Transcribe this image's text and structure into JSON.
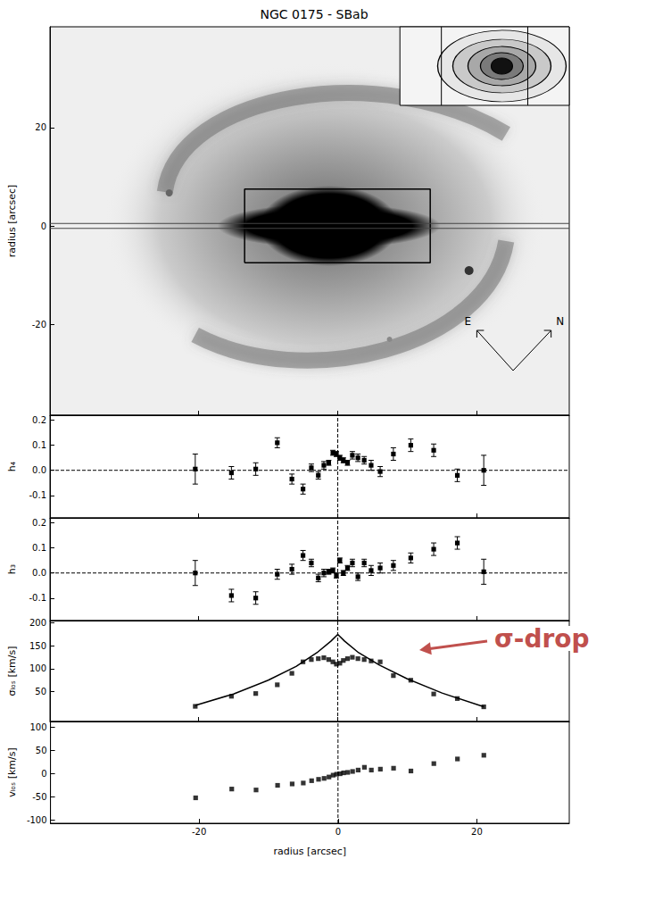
{
  "chart_data": [
    {
      "type": "image",
      "title": "NGC 0175 - SBab",
      "xlim": [
        -41.4,
        33.3
      ],
      "xticks": [
        -20,
        0,
        20
      ],
      "ylim": [
        -38.5,
        40.5
      ],
      "yticks": [
        -20,
        0,
        20
      ],
      "ylabel": "radius [arcsec]",
      "tick_labels": "y",
      "box": {
        "x": [
          -13.4,
          13.3
        ],
        "y": [
          -7.5,
          7.5
        ]
      },
      "slit": {
        "y": [
          -0.5,
          0.5
        ]
      },
      "compass": [
        "E",
        "N"
      ]
    },
    {
      "type": "scatter",
      "ylabel": "h₄",
      "color": "#000000",
      "marker": "square",
      "tick_labels": "y",
      "x": [
        -20.5,
        -15.3,
        -11.8,
        -8.7,
        -6.6,
        -5.0,
        -3.8,
        -2.8,
        -2.0,
        -1.3,
        -0.7,
        -0.2,
        0.3,
        0.8,
        1.4,
        2.1,
        2.9,
        3.8,
        4.8,
        6.1,
        8.0,
        10.5,
        13.8,
        17.2,
        21.0
      ],
      "values": [
        0.005,
        -0.01,
        0.005,
        0.11,
        -0.035,
        -0.075,
        0.01,
        -0.02,
        0.02,
        0.03,
        0.07,
        0.065,
        0.05,
        0.04,
        0.03,
        0.06,
        0.05,
        0.04,
        0.02,
        -0.005,
        0.065,
        0.1,
        0.08,
        -0.02,
        0.0
      ],
      "errors": [
        0.06,
        0.025,
        0.025,
        0.02,
        0.02,
        0.02,
        0.015,
        0.015,
        0.015,
        0.01,
        0.01,
        0.01,
        0.01,
        0.01,
        0.01,
        0.015,
        0.015,
        0.015,
        0.02,
        0.02,
        0.025,
        0.025,
        0.025,
        0.025,
        0.06
      ],
      "xlim": [
        -41.4,
        33.3
      ],
      "xticks": [
        -20,
        0,
        20
      ],
      "ylim": [
        -0.19,
        0.22
      ],
      "yticks": [
        -0.1,
        {
          "value": 0,
          "label": "0.0"
        },
        0.1,
        0.2
      ],
      "hline": 0,
      "vline": 0
    },
    {
      "type": "scatter",
      "ylabel": "h₃",
      "color": "#000000",
      "marker": "square",
      "tick_labels": "y",
      "x": [
        -20.5,
        -15.3,
        -11.8,
        -8.7,
        -6.6,
        -5.0,
        -3.8,
        -2.8,
        -2.0,
        -1.3,
        -0.7,
        -0.2,
        0.3,
        0.8,
        1.4,
        2.1,
        2.9,
        3.8,
        4.8,
        6.1,
        8.0,
        10.5,
        13.8,
        17.2,
        21.0
      ],
      "values": [
        0.0,
        -0.09,
        -0.1,
        -0.005,
        0.015,
        0.07,
        0.04,
        -0.02,
        0.0,
        0.005,
        0.01,
        -0.01,
        0.05,
        0.0,
        0.02,
        0.04,
        -0.015,
        0.04,
        0.01,
        0.02,
        0.03,
        0.06,
        0.095,
        0.12,
        0.005
      ],
      "errors": [
        0.05,
        0.025,
        0.025,
        0.02,
        0.02,
        0.02,
        0.015,
        0.015,
        0.015,
        0.01,
        0.01,
        0.01,
        0.01,
        0.01,
        0.01,
        0.015,
        0.015,
        0.015,
        0.02,
        0.02,
        0.02,
        0.02,
        0.025,
        0.025,
        0.05
      ],
      "xlim": [
        -41.4,
        33.3
      ],
      "xticks": [
        -20,
        0,
        20
      ],
      "ylim": [
        -0.19,
        0.22
      ],
      "yticks": [
        -0.1,
        {
          "value": 0,
          "label": "0.0"
        },
        0.1,
        0.2
      ],
      "hline": 0,
      "vline": 0
    },
    {
      "type": "scatter",
      "ylabel": "σₗₒₛ [km/s]",
      "color": "#000000",
      "marker": "square",
      "tick_labels": "y",
      "x": [
        -20.5,
        -15.3,
        -11.8,
        -8.7,
        -6.6,
        -5.0,
        -3.8,
        -2.8,
        -2.0,
        -1.3,
        -0.7,
        -0.2,
        0.3,
        0.8,
        1.4,
        2.1,
        2.9,
        3.8,
        4.8,
        6.1,
        8.0,
        10.5,
        13.8,
        17.2,
        21.0
      ],
      "values": [
        18,
        40,
        46,
        65,
        90,
        115,
        120,
        122,
        124,
        120,
        115,
        110,
        112,
        118,
        122,
        125,
        122,
        120,
        117,
        115,
        85,
        75,
        45,
        35,
        17
      ],
      "model": {
        "x": [
          -20.5,
          -15,
          -10,
          -6,
          -3,
          -1,
          0,
          1,
          3,
          6,
          10,
          15,
          21
        ],
        "values": [
          20,
          45,
          75,
          105,
          135,
          160,
          175,
          160,
          135,
          108,
          78,
          47,
          17
        ]
      },
      "xlim": [
        -41.4,
        33.3
      ],
      "xticks": [
        -20,
        0,
        20
      ],
      "ylim": [
        -15,
        205
      ],
      "yticks": [
        50,
        100,
        150,
        200
      ],
      "vline": 0,
      "annotation": {
        "text": "σ-drop",
        "color": "#c0504d"
      }
    },
    {
      "type": "scatter",
      "ylabel": "vₗₒₛ [km/s]",
      "xlabel": "radius [arcsec]",
      "color": "#000000",
      "marker": "square",
      "x": [
        -20.5,
        -15.3,
        -11.8,
        -8.7,
        -6.6,
        -5.0,
        -3.8,
        -2.8,
        -2.0,
        -1.3,
        -0.7,
        -0.2,
        0.3,
        0.8,
        1.4,
        2.1,
        2.9,
        3.8,
        4.8,
        6.1,
        8.0,
        10.5,
        13.8,
        17.2,
        21.0
      ],
      "values": [
        -52,
        -33,
        -35,
        -25,
        -22,
        -20,
        -15,
        -12,
        -10,
        -7,
        -3,
        -1,
        0,
        2,
        3,
        5,
        8,
        14,
        8,
        10,
        12,
        6,
        22,
        32,
        40
      ],
      "xlim": [
        -41.4,
        33.3
      ],
      "xticks": [
        -20,
        0,
        20
      ],
      "ylim": [
        -107,
        113
      ],
      "yticks": [
        -100,
        -50,
        0,
        50,
        100
      ],
      "vline": 0
    }
  ]
}
